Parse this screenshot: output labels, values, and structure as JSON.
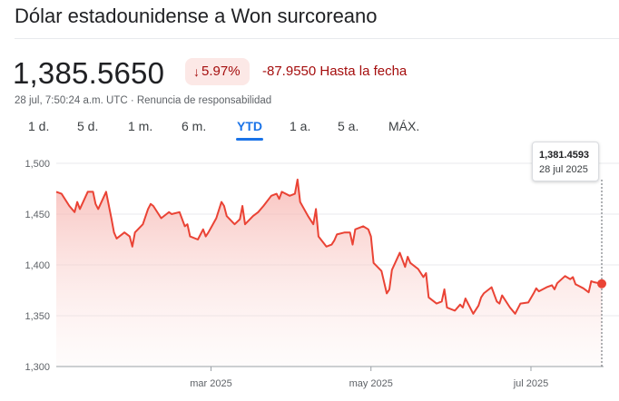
{
  "header": {
    "title": "Dólar estadounidense a Won surcoreano",
    "price": "1,385.5650",
    "change_percent": "5.97%",
    "change_direction": "down",
    "change_value": "-87.9550 Hasta la fecha",
    "meta": "28 jul, 7:50:24 a.m. UTC · Renuncia de responsabilidad"
  },
  "tabs": [
    {
      "label": "1 d.",
      "active": false
    },
    {
      "label": "5 d.",
      "active": false
    },
    {
      "label": "1 m.",
      "active": false
    },
    {
      "label": "6 m.",
      "active": false
    },
    {
      "label": "YTD",
      "active": true
    },
    {
      "label": "1 a.",
      "active": false
    },
    {
      "label": "5 a.",
      "active": false
    },
    {
      "label": "MÁX.",
      "active": false
    }
  ],
  "tooltip": {
    "value": "1,381.4593",
    "date": "28 jul 2025"
  },
  "colors": {
    "line": "#ea4335",
    "fill": "#fad2cf",
    "negative": "#a50e0e",
    "accent": "#1a73e8"
  },
  "chart_data": {
    "type": "area",
    "title": "",
    "xlabel": "",
    "ylabel": "",
    "ylim": [
      1300,
      1500
    ],
    "xlim": [
      "2025-01-01",
      "2025-07-28"
    ],
    "grid": true,
    "y_ticks": [
      {
        "value": 1500,
        "label": "1,500"
      },
      {
        "value": 1450,
        "label": "1,450"
      },
      {
        "value": 1400,
        "label": "1,400"
      },
      {
        "value": 1350,
        "label": "1,350"
      },
      {
        "value": 1300,
        "label": "1,300"
      }
    ],
    "x_ticks": [
      {
        "date": "2025-03-01",
        "label": "mar 2025"
      },
      {
        "date": "2025-05-01",
        "label": "may 2025"
      },
      {
        "date": "2025-07-01",
        "label": "jul 2025"
      }
    ],
    "series": [
      {
        "name": "",
        "x": [
          "2025-01-01",
          "2025-01-03",
          "2025-01-06",
          "2025-01-08",
          "2025-01-09",
          "2025-01-10",
          "2025-01-13",
          "2025-01-15",
          "2025-01-16",
          "2025-01-17",
          "2025-01-20",
          "2025-01-22",
          "2025-01-23",
          "2025-01-24",
          "2025-01-27",
          "2025-01-29",
          "2025-01-30",
          "2025-01-31",
          "2025-02-03",
          "2025-02-05",
          "2025-02-06",
          "2025-02-07",
          "2025-02-10",
          "2025-02-12",
          "2025-02-13",
          "2025-02-14",
          "2025-02-17",
          "2025-02-19",
          "2025-02-20",
          "2025-02-21",
          "2025-02-24",
          "2025-02-26",
          "2025-02-27",
          "2025-02-28",
          "2025-03-03",
          "2025-03-05",
          "2025-03-06",
          "2025-03-07",
          "2025-03-10",
          "2025-03-12",
          "2025-03-13",
          "2025-03-14",
          "2025-03-17",
          "2025-03-19",
          "2025-03-20",
          "2025-03-21",
          "2025-03-24",
          "2025-03-26",
          "2025-03-27",
          "2025-03-28",
          "2025-03-31",
          "2025-04-02",
          "2025-04-03",
          "2025-04-04",
          "2025-04-07",
          "2025-04-09",
          "2025-04-10",
          "2025-04-11",
          "2025-04-14",
          "2025-04-16",
          "2025-04-17",
          "2025-04-18",
          "2025-04-21",
          "2025-04-23",
          "2025-04-24",
          "2025-04-25",
          "2025-04-28",
          "2025-04-30",
          "2025-05-01",
          "2025-05-02",
          "2025-05-05",
          "2025-05-07",
          "2025-05-08",
          "2025-05-09",
          "2025-05-12",
          "2025-05-14",
          "2025-05-15",
          "2025-05-16",
          "2025-05-19",
          "2025-05-21",
          "2025-05-22",
          "2025-05-23",
          "2025-05-26",
          "2025-05-28",
          "2025-05-29",
          "2025-05-30",
          "2025-06-02",
          "2025-06-04",
          "2025-06-05",
          "2025-06-06",
          "2025-06-09",
          "2025-06-11",
          "2025-06-12",
          "2025-06-13",
          "2025-06-16",
          "2025-06-18",
          "2025-06-19",
          "2025-06-20",
          "2025-06-23",
          "2025-06-25",
          "2025-06-26",
          "2025-06-27",
          "2025-06-30",
          "2025-07-02",
          "2025-07-03",
          "2025-07-04",
          "2025-07-07",
          "2025-07-09",
          "2025-07-10",
          "2025-07-11",
          "2025-07-14",
          "2025-07-16",
          "2025-07-17",
          "2025-07-18",
          "2025-07-21",
          "2025-07-23",
          "2025-07-24",
          "2025-07-25",
          "2025-07-28"
        ],
        "values": [
          1472,
          1470,
          1458,
          1452,
          1462,
          1455,
          1472,
          1472,
          1460,
          1455,
          1472,
          1446,
          1432,
          1426,
          1432,
          1428,
          1418,
          1432,
          1440,
          1455,
          1460,
          1458,
          1446,
          1450,
          1452,
          1450,
          1452,
          1438,
          1440,
          1428,
          1425,
          1435,
          1428,
          1432,
          1446,
          1462,
          1458,
          1448,
          1440,
          1445,
          1458,
          1440,
          1448,
          1452,
          1455,
          1458,
          1468,
          1470,
          1465,
          1472,
          1468,
          1470,
          1484,
          1462,
          1448,
          1440,
          1455,
          1428,
          1418,
          1420,
          1424,
          1430,
          1432,
          1432,
          1420,
          1435,
          1438,
          1435,
          1428,
          1402,
          1394,
          1372,
          1376,
          1395,
          1412,
          1398,
          1408,
          1402,
          1396,
          1388,
          1392,
          1368,
          1362,
          1364,
          1376,
          1358,
          1355,
          1361,
          1358,
          1367,
          1352,
          1360,
          1368,
          1372,
          1378,
          1364,
          1362,
          1370,
          1358,
          1352,
          1357,
          1362,
          1363,
          1372,
          1377,
          1374,
          1378,
          1380,
          1376,
          1382,
          1389,
          1386,
          1388,
          1381,
          1377,
          1373,
          1384,
          1383,
          1381.46
        ]
      }
    ],
    "highlight": {
      "date": "2025-07-28",
      "value": 1381.4593
    }
  }
}
